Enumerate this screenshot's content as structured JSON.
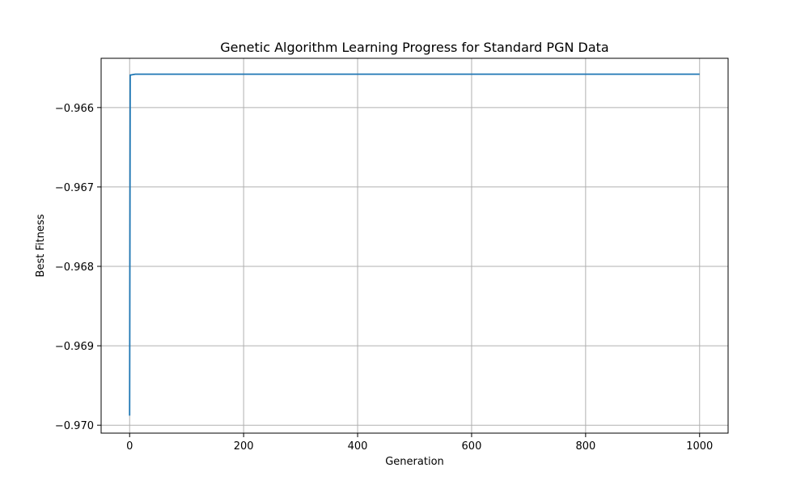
{
  "chart_data": {
    "type": "line",
    "title": "Genetic Algorithm Learning Progress for Standard PGN Data",
    "xlabel": "Generation",
    "ylabel": "Best Fitness",
    "xlim": [
      -50,
      1050
    ],
    "ylim": [
      -0.9701,
      -0.96538
    ],
    "xticks": [
      0,
      200,
      400,
      600,
      800,
      1000
    ],
    "xtick_labels": [
      "0",
      "200",
      "400",
      "600",
      "800",
      "1000"
    ],
    "yticks": [
      -0.97,
      -0.969,
      -0.968,
      -0.967,
      -0.966
    ],
    "ytick_labels": [
      "−0.970",
      "−0.969",
      "−0.968",
      "−0.967",
      "−0.966"
    ],
    "grid": true,
    "series": [
      {
        "color": "#1f77b4",
        "x": [
          0,
          1,
          2,
          10,
          20,
          50,
          100,
          200,
          300,
          400,
          500,
          600,
          700,
          800,
          900,
          1000
        ],
        "y": [
          -0.96988,
          -0.96559,
          -0.96559,
          -0.96558,
          -0.96558,
          -0.96558,
          -0.96558,
          -0.96558,
          -0.96558,
          -0.96558,
          -0.96558,
          -0.96558,
          -0.96558,
          -0.96558,
          -0.96558,
          -0.96558
        ]
      }
    ]
  }
}
